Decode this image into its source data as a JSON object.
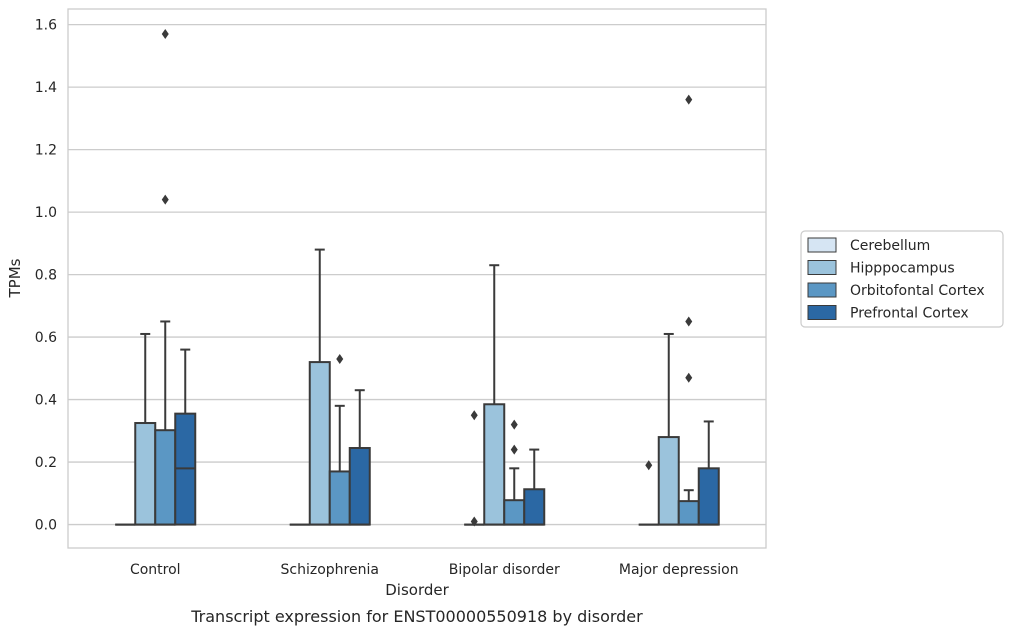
{
  "chart_data": {
    "type": "box",
    "caption": "Transcript expression for ENST00000550918 by disorder",
    "xlabel": "Disorder",
    "ylabel": "TPMs",
    "ylim": [
      -0.075,
      1.65
    ],
    "yticks": [
      "0.0",
      "0.2",
      "0.4",
      "0.6",
      "0.8",
      "1.0",
      "1.2",
      "1.4",
      "1.6"
    ],
    "grid": true,
    "legend_position": "right",
    "categories": [
      "Control",
      "Schizophrenia",
      "Bipolar disorder",
      "Major depression"
    ],
    "series": [
      {
        "name": "Cerebellum",
        "color": "#d6e5f3",
        "boxes": [
          {
            "whisker_low": 0,
            "q1": 0,
            "median": 0,
            "q3": 0,
            "whisker_high": 0,
            "outliers": []
          },
          {
            "whisker_low": 0,
            "q1": 0,
            "median": 0,
            "q3": 0,
            "whisker_high": 0,
            "outliers": []
          },
          {
            "whisker_low": 0,
            "q1": 0,
            "median": 0,
            "q3": 0,
            "whisker_high": 0,
            "outliers": [
              0.01,
              0.35
            ]
          },
          {
            "whisker_low": 0,
            "q1": 0,
            "median": 0,
            "q3": 0,
            "whisker_high": 0,
            "outliers": [
              0.19
            ]
          }
        ]
      },
      {
        "name": "Hipppocampus",
        "color": "#9bc3dc",
        "boxes": [
          {
            "whisker_low": 0,
            "q1": 0,
            "median": 0,
            "q3": 0.325,
            "whisker_high": 0.61,
            "outliers": []
          },
          {
            "whisker_low": 0,
            "q1": 0,
            "median": 0,
            "q3": 0.52,
            "whisker_high": 0.88,
            "outliers": []
          },
          {
            "whisker_low": 0,
            "q1": 0,
            "median": 0,
            "q3": 0.385,
            "whisker_high": 0.83,
            "outliers": []
          },
          {
            "whisker_low": 0,
            "q1": 0,
            "median": 0,
            "q3": 0.28,
            "whisker_high": 0.61,
            "outliers": []
          }
        ]
      },
      {
        "name": "Orbitofontal Cortex",
        "color": "#5b97c4",
        "boxes": [
          {
            "whisker_low": 0,
            "q1": 0,
            "median": 0,
            "q3": 0.302,
            "whisker_high": 0.65,
            "outliers": [
              1.04,
              1.57
            ]
          },
          {
            "whisker_low": 0,
            "q1": 0,
            "median": 0,
            "q3": 0.17,
            "whisker_high": 0.38,
            "outliers": [
              0.53
            ]
          },
          {
            "whisker_low": 0,
            "q1": 0,
            "median": 0,
            "q3": 0.078,
            "whisker_high": 0.18,
            "outliers": [
              0.24,
              0.32
            ]
          },
          {
            "whisker_low": 0,
            "q1": 0,
            "median": 0,
            "q3": 0.075,
            "whisker_high": 0.11,
            "outliers": [
              0.47,
              0.65,
              1.36
            ]
          }
        ]
      },
      {
        "name": "Prefrontal Cortex",
        "color": "#2b68a4",
        "boxes": [
          {
            "whisker_low": 0,
            "q1": 0,
            "median": 0.18,
            "q3": 0.355,
            "whisker_high": 0.56,
            "outliers": []
          },
          {
            "whisker_low": 0,
            "q1": 0,
            "median": 0,
            "q3": 0.245,
            "whisker_high": 0.43,
            "outliers": []
          },
          {
            "whisker_low": 0,
            "q1": 0,
            "median": 0,
            "q3": 0.113,
            "whisker_high": 0.24,
            "outliers": []
          },
          {
            "whisker_low": 0,
            "q1": 0,
            "median": 0,
            "q3": 0.18,
            "whisker_high": 0.33,
            "outliers": []
          }
        ]
      }
    ]
  }
}
